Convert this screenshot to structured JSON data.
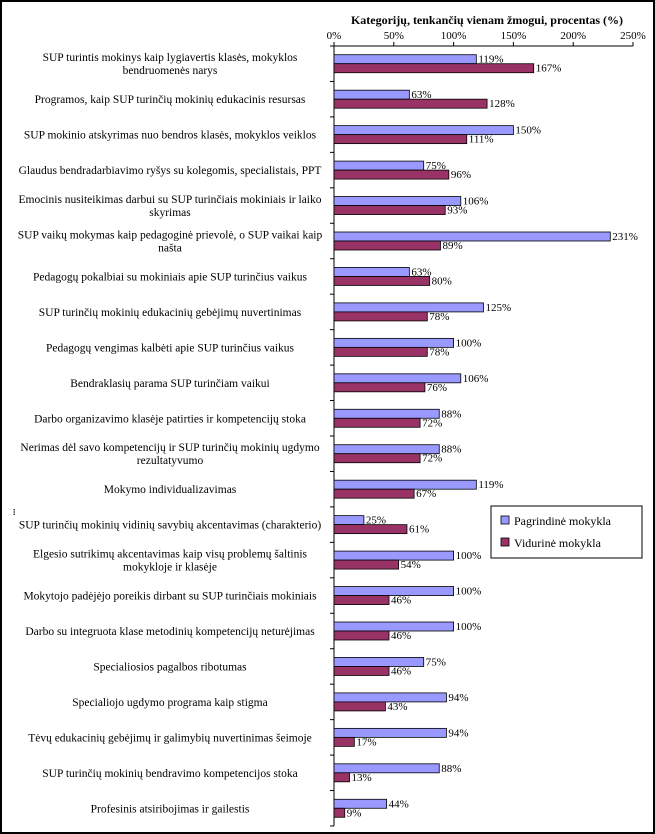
{
  "chart_data": {
    "type": "bar",
    "orientation": "horizontal",
    "title": "Kategorijų, tenkančių vienam žmogui, procentas (%)",
    "ylabel": "...",
    "xlim": [
      0,
      250
    ],
    "x_ticks": [
      "0%",
      "50%",
      "100%",
      "150%",
      "200%",
      "250%"
    ],
    "grid": false,
    "legend_position": "right",
    "colors": {
      "Pagrindinė mokykla": "#9999ff",
      "Vidurinė mokykla": "#993366"
    },
    "categories": [
      "SUP turintis mokinys kaip lygiavertis klasės, mokyklos bendruomenės narys",
      "Programos, kaip SUP turinčių mokinių edukacinis resursas",
      "SUP mokinio atskyrimas nuo bendros klasės, mokyklos veiklos",
      "Glaudus bendradarbiavimo ryšys su kolegomis, specialistais, PPT",
      "Emocinis nusiteikimas darbui su SUP turinčiais mokiniais ir laiko skyrimas",
      "SUP vaikų mokymas kaip pedagoginė prievolė, o SUP vaikai kaip našta",
      "Pedagogų pokalbiai su mokiniais apie SUP turinčius vaikus",
      "SUP turinčių mokinių edukacinių gebėjimų nuvertinimas",
      "Pedagogų vengimas kalbėti apie SUP turinčius vaikus",
      "Bendraklasių parama SUP turinčiam vaikui",
      "Darbo organizavimo klasėje patirties ir kompetencijų stoka",
      "Nerimas dėl savo kompetencijų ir SUP turinčių mokinių ugdymo rezultatyvumo",
      "Mokymo individualizavimas",
      "SUP turinčių mokinių vidinių savybių akcentavimas (charakterio)",
      "Elgesio sutrikimų akcentavimas kaip visų problemų šaltinis mokykloje ir klasėje",
      "Mokytojo padėjėjo poreikis dirbant su SUP turinčiais mokiniais",
      "Darbo su integruota klase metodinių kompetencijų neturėjimas",
      "Specialiosios pagalbos ribotumas",
      "Specialiojo ugdymo programa kaip stigma",
      "Tėvų edukacinių gebėjimų ir galimybių nuvertinimas šeimoje",
      "SUP turinčių mokinių bendravimo kompetencijos stoka",
      "Profesinis atsiribojimas ir gailestis"
    ],
    "series": [
      {
        "name": "Pagrindinė mokykla",
        "values": [
          119,
          63,
          150,
          75,
          106,
          231,
          63,
          125,
          100,
          106,
          88,
          88,
          119,
          25,
          100,
          100,
          100,
          75,
          94,
          94,
          88,
          44
        ]
      },
      {
        "name": "Vidurinė mokykla",
        "values": [
          167,
          128,
          111,
          96,
          93,
          89,
          80,
          78,
          78,
          76,
          72,
          72,
          67,
          61,
          54,
          46,
          46,
          46,
          43,
          17,
          13,
          9
        ]
      }
    ]
  }
}
